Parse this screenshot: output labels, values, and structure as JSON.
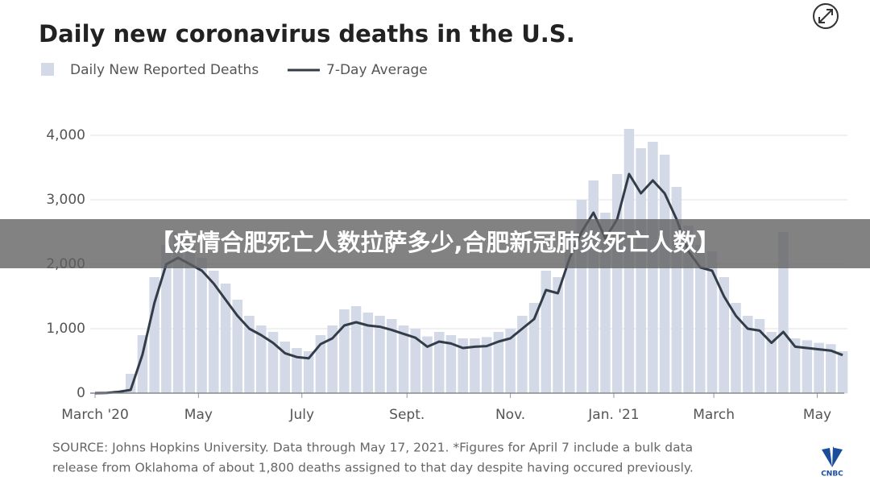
{
  "chart_data": {
    "type": "bar-line",
    "title": "Daily new coronavirus deaths in the U.S.",
    "x": [
      0,
      7,
      14,
      21,
      28,
      35,
      42,
      49,
      56,
      63,
      70,
      77,
      84,
      91,
      98,
      105,
      112,
      119,
      126,
      133,
      140,
      147,
      154,
      161,
      168,
      175,
      182,
      189,
      196,
      203,
      210,
      217,
      224,
      231,
      238,
      245,
      252,
      259,
      266,
      273,
      280,
      287,
      294,
      301,
      308,
      315,
      322,
      329,
      336,
      343,
      350,
      357,
      364,
      371,
      378,
      385,
      392,
      399,
      406,
      413,
      420,
      427,
      434,
      441
    ],
    "series": [
      {
        "name": "Daily New Reported Deaths",
        "color": "#d3d9e6",
        "values": [
          0,
          5,
          40,
          300,
          900,
          1800,
          2300,
          2500,
          2300,
          2100,
          1900,
          1700,
          1450,
          1200,
          1050,
          950,
          800,
          700,
          650,
          900,
          1050,
          1300,
          1350,
          1250,
          1200,
          1150,
          1050,
          1000,
          880,
          950,
          900,
          850,
          850,
          870,
          950,
          1000,
          1200,
          1400,
          1900,
          1800,
          2500,
          3000,
          3300,
          2800,
          3400,
          4100,
          3800,
          3900,
          3700,
          3200,
          2600,
          2300,
          2200,
          1800,
          1400,
          1200,
          1150,
          950,
          2500,
          850,
          820,
          780,
          760,
          650
        ]
      },
      {
        "name": "7-Day Average",
        "color": "#333d4a",
        "values": [
          0,
          2,
          20,
          50,
          600,
          1400,
          2000,
          2100,
          2000,
          1900,
          1700,
          1450,
          1200,
          1000,
          900,
          780,
          620,
          560,
          540,
          760,
          850,
          1050,
          1100,
          1050,
          1030,
          980,
          920,
          860,
          720,
          800,
          770,
          700,
          720,
          730,
          800,
          850,
          1000,
          1150,
          1600,
          1550,
          2100,
          2500,
          2800,
          2400,
          2700,
          3400,
          3100,
          3300,
          3100,
          2700,
          2200,
          1950,
          1900,
          1500,
          1200,
          1000,
          970,
          780,
          950,
          720,
          700,
          680,
          660,
          590
        ]
      }
    ],
    "xlim": [
      0,
      445
    ],
    "xticks": [
      {
        "value": 0,
        "label": "March '20"
      },
      {
        "value": 61,
        "label": "May"
      },
      {
        "value": 122,
        "label": "July"
      },
      {
        "value": 184,
        "label": "Sept."
      },
      {
        "value": 245,
        "label": "Nov."
      },
      {
        "value": 306,
        "label": "Jan. '21"
      },
      {
        "value": 365,
        "label": "March"
      },
      {
        "value": 426,
        "label": "May"
      }
    ],
    "ylim": [
      0,
      4500
    ],
    "yticks": [
      0,
      {
        "value": 1000,
        "label": "1,000"
      },
      {
        "value": 2000,
        "label": "2,000"
      },
      {
        "value": 3000,
        "label": "3,000"
      },
      {
        "value": 4000,
        "label": "4,000"
      }
    ],
    "grid": true,
    "source": [
      "SOURCE: Johns Hopkins University. Data through May 17, 2021. *Figures for April 7 include a bulk data",
      "release from Oklahoma of about 1,800 deaths assigned to that day despite having occured previously."
    ]
  },
  "banner": "【疫情合肥死亡人数拉萨多少,合肥新冠肺炎死亡人数】"
}
